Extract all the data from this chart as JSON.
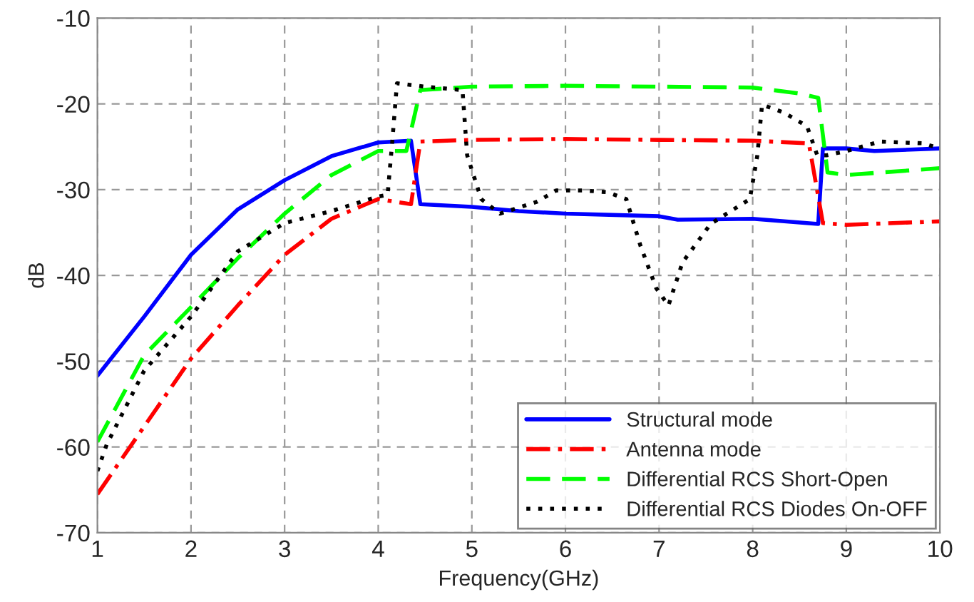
{
  "chart_data": {
    "type": "line",
    "xlabel": "Frequency(GHz)",
    "ylabel": "dB",
    "xlim": [
      1,
      10
    ],
    "ylim": [
      -70,
      -10
    ],
    "xticks": [
      1,
      2,
      3,
      4,
      5,
      6,
      7,
      8,
      9,
      10
    ],
    "yticks": [
      -70,
      -60,
      -50,
      -40,
      -30,
      -20,
      -10
    ],
    "grid": true,
    "legend": "bottom right",
    "marker": "none",
    "series": [
      {
        "name": "Structural mode",
        "color": "#0000ff",
        "line_style": "solid",
        "x": [
          1,
          1.5,
          2,
          2.5,
          3,
          3.5,
          4,
          4.35,
          4.45,
          5,
          5.5,
          6,
          7,
          7.2,
          8,
          8.7,
          8.75,
          9,
          9.3,
          10
        ],
        "values": [
          -51.7,
          -44.8,
          -37.6,
          -32.3,
          -28.9,
          -26.1,
          -24.5,
          -24.3,
          -31.7,
          -32,
          -32.5,
          -32.8,
          -33.1,
          -33.5,
          -33.4,
          -34,
          -25.2,
          -25.2,
          -25.5,
          -25.2
        ]
      },
      {
        "name": "Antenna mode",
        "color": "#ff0000",
        "line_style": "dashdot",
        "x": [
          1,
          1.5,
          2,
          2.5,
          3,
          3.5,
          4,
          4.35,
          4.45,
          5,
          6,
          7,
          8,
          8.6,
          8.75,
          9,
          10
        ],
        "values": [
          -65.5,
          -57.6,
          -49.7,
          -43.5,
          -37.6,
          -33.4,
          -31.1,
          -31.7,
          -24.4,
          -24.2,
          -24.1,
          -24.2,
          -24.3,
          -24.6,
          -33.9,
          -34.1,
          -33.7
        ]
      },
      {
        "name": "Differential RCS Short-Open",
        "color": "#00ff00",
        "line_style": "dashed",
        "x": [
          1,
          1.5,
          2,
          2.5,
          3,
          3.5,
          4,
          4.3,
          4.45,
          5,
          6,
          7,
          8,
          8.5,
          8.7,
          8.8,
          9,
          10
        ],
        "values": [
          -59.4,
          -49.3,
          -43.7,
          -38,
          -32.8,
          -28.3,
          -25.5,
          -25.5,
          -18.4,
          -18,
          -17.9,
          -18,
          -18.1,
          -18.8,
          -19.3,
          -28,
          -28.3,
          -27.5
        ]
      },
      {
        "name": "Differential RCS Diodes On-OFF",
        "color": "#000000",
        "line_style": "dotted",
        "x": [
          1,
          1.1,
          1.5,
          2,
          2.5,
          3,
          3.5,
          4,
          4.1,
          4.15,
          4.2,
          4.5,
          4.9,
          4.95,
          5.1,
          5.3,
          5.7,
          5.9,
          6.2,
          6.45,
          6.65,
          6.8,
          6.97,
          7.1,
          7.25,
          7.55,
          7.97,
          8.05,
          8.1,
          8.33,
          8.58,
          8.69,
          8.79,
          9,
          9.36,
          9.82,
          10
        ],
        "values": [
          -62.8,
          -59.7,
          -51.1,
          -44.8,
          -37.2,
          -33.9,
          -32.5,
          -30.8,
          -30.6,
          -24.4,
          -17.6,
          -18,
          -18.4,
          -26,
          -31.1,
          -32.8,
          -31.4,
          -30.1,
          -30.1,
          -30.3,
          -31.1,
          -36.5,
          -41.5,
          -43.5,
          -38.5,
          -34,
          -31.1,
          -26,
          -20.1,
          -21,
          -22.6,
          -26,
          -26,
          -25.5,
          -24.4,
          -24.6,
          -25.2
        ]
      }
    ]
  }
}
